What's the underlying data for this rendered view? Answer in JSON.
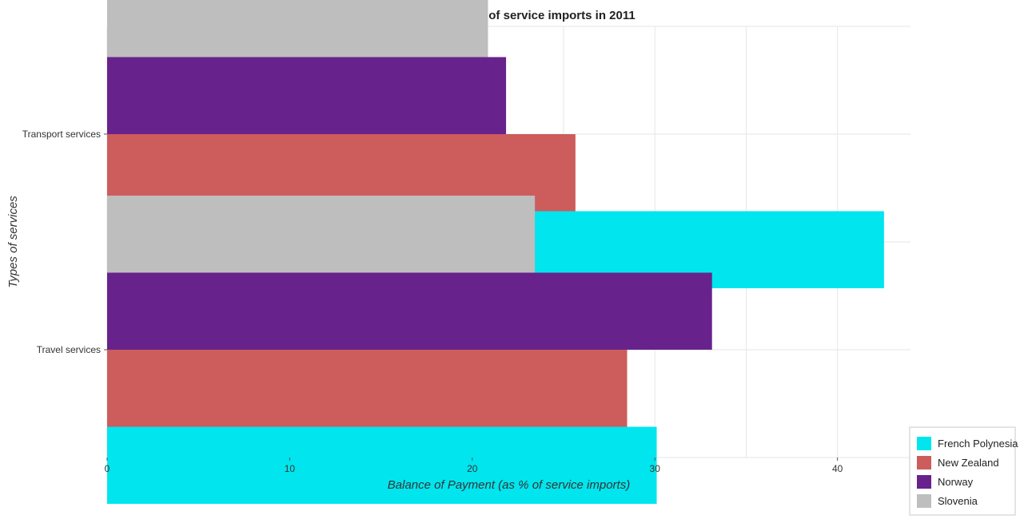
{
  "chart_data": {
    "type": "bar",
    "orientation": "horizontal",
    "title": "Balance of payments as percentage of service imports in 2011",
    "xlabel": "Balance of Payment (as % of service imports)",
    "ylabel": "Types of services",
    "xlim": [
      0,
      44
    ],
    "xticks": [
      0,
      10,
      20,
      30,
      40
    ],
    "grid": true,
    "legend_position": "bottom-right",
    "categories": [
      "Transport services",
      "Travel services"
    ],
    "series": [
      {
        "name": "French Polynesia",
        "color": "#00e5ee",
        "values": [
          42.55,
          30.1
        ]
      },
      {
        "name": "New Zealand",
        "color": "#cd5c5c",
        "values": [
          25.65,
          28.48
        ]
      },
      {
        "name": "Norway",
        "color": "#68228b",
        "values": [
          21.85,
          33.13
        ]
      },
      {
        "name": "Slovenia",
        "color": "#bebebe",
        "values": [
          20.86,
          23.43
        ]
      }
    ]
  }
}
